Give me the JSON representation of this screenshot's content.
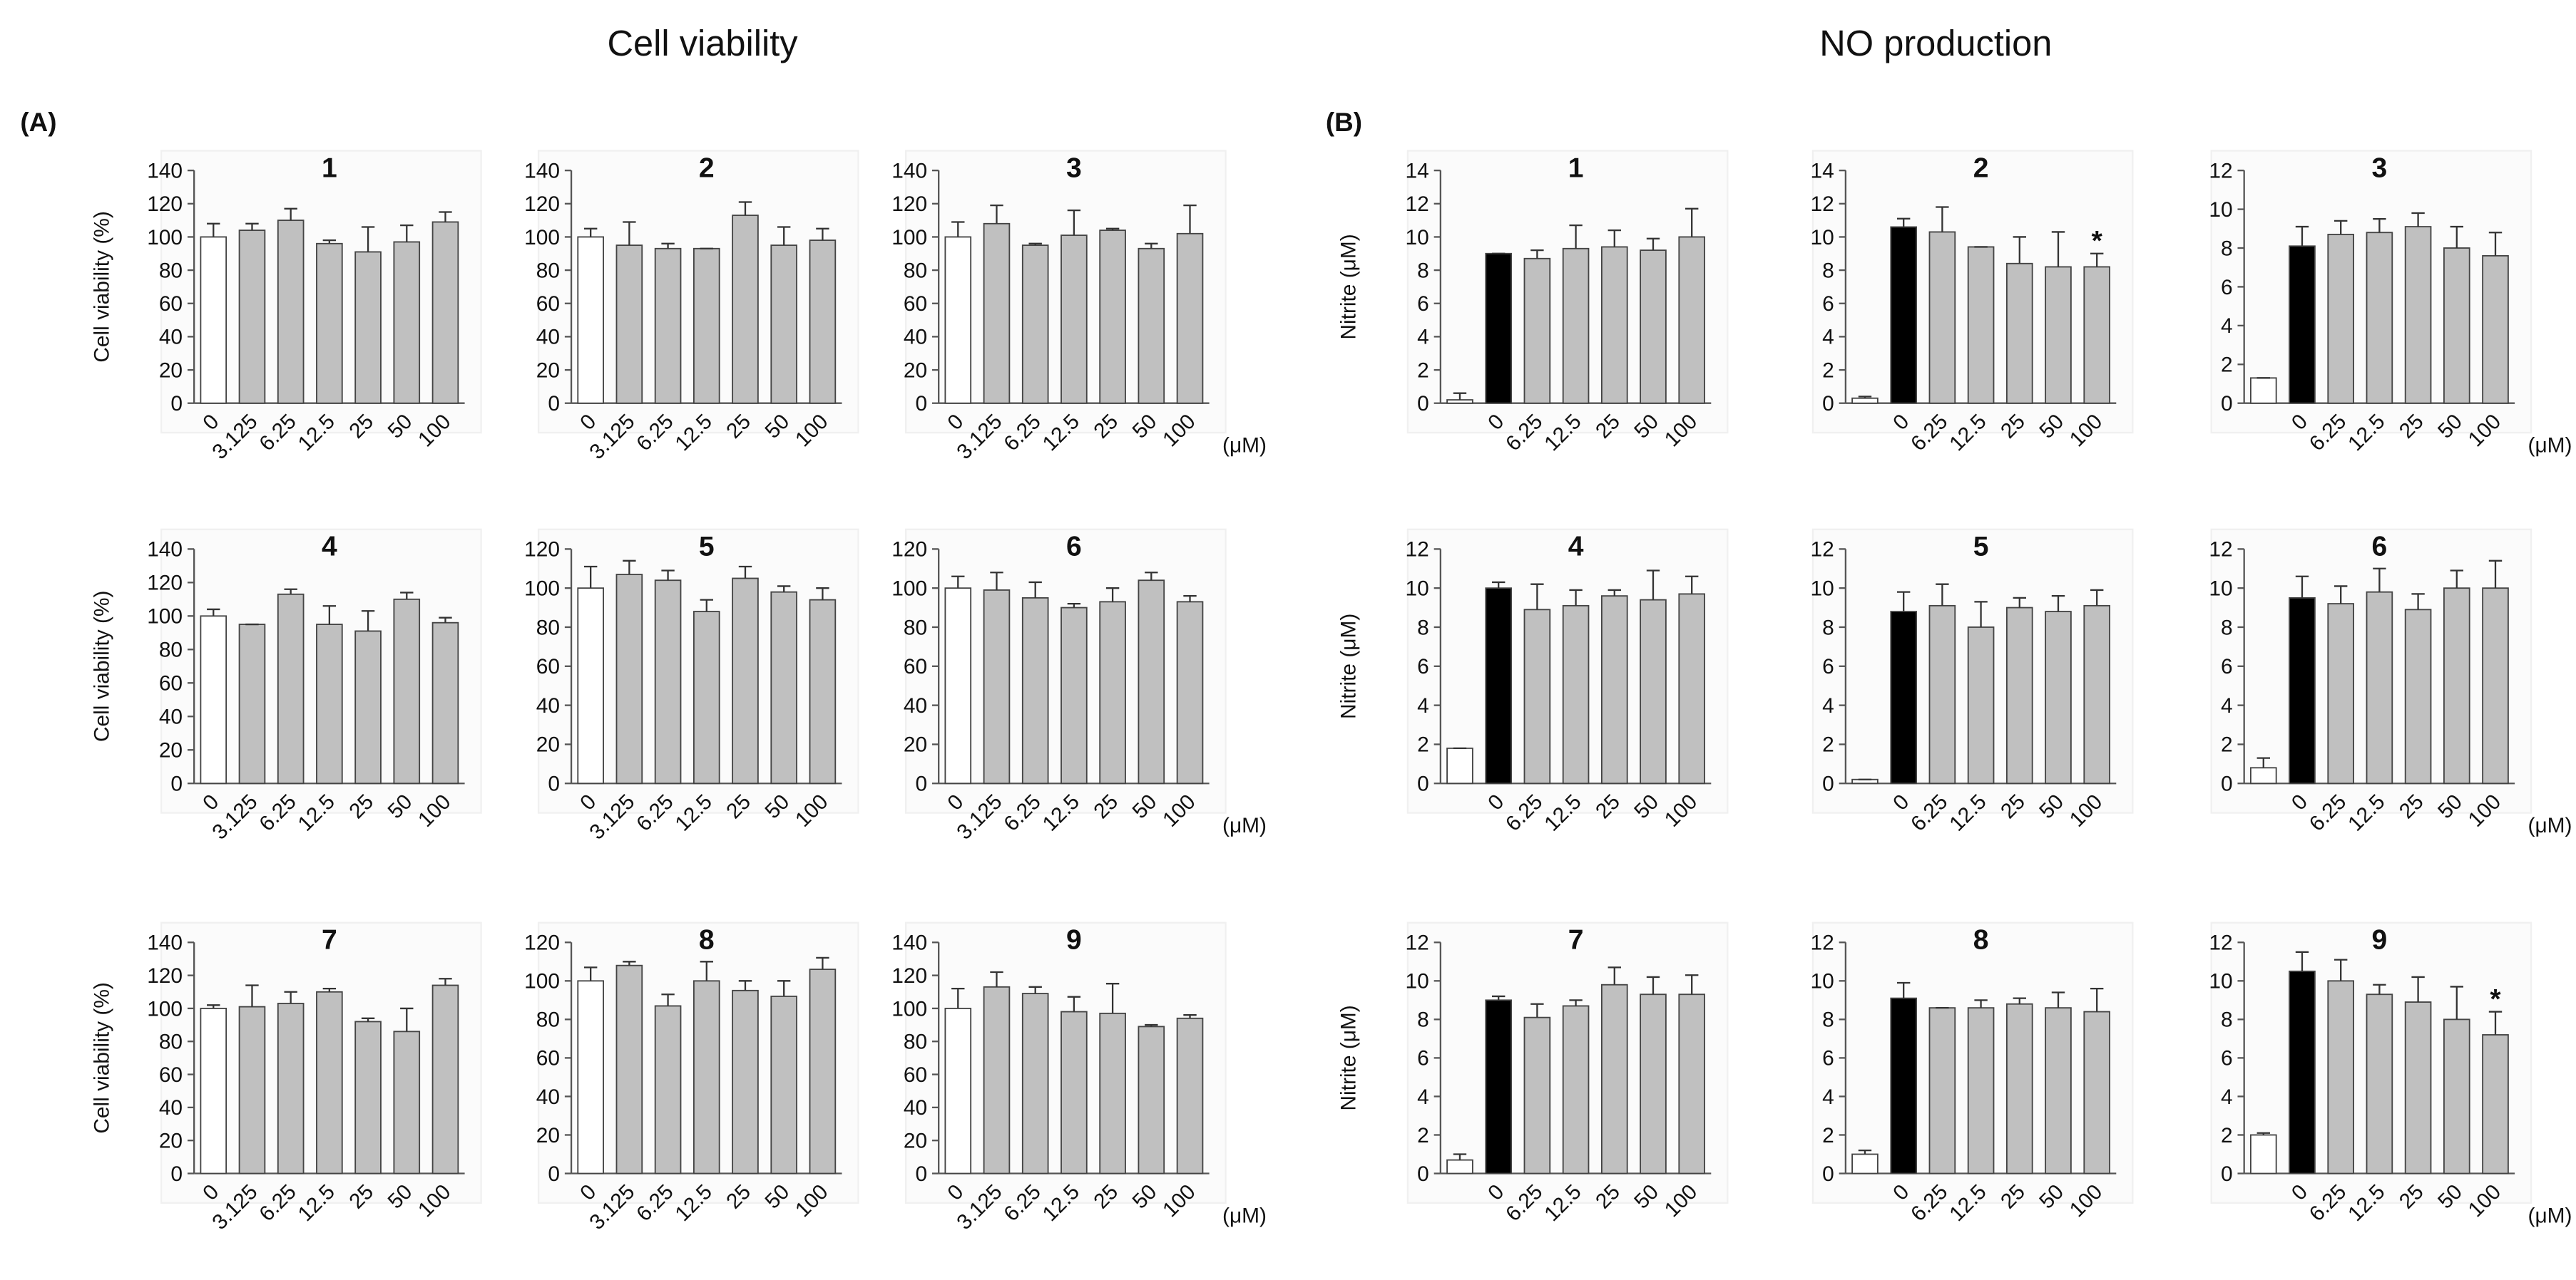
{
  "section_titles": [
    "Cell viability",
    "NO production"
  ],
  "panel_labels": [
    "(A)",
    "(B)"
  ],
  "chart_data": [
    {
      "type": "bar",
      "title": "1",
      "ylabel": "Cell viability (%)",
      "categories": [
        "0",
        "3.125",
        "6.25",
        "12.5",
        "25",
        "50",
        "100"
      ],
      "values": [
        100,
        104,
        110,
        96,
        91,
        97,
        109
      ],
      "errors": [
        8,
        4,
        7,
        2,
        15,
        10,
        6
      ],
      "colors": [
        "#ffffff",
        "#c0c0c0",
        "#c0c0c0",
        "#c0c0c0",
        "#c0c0c0",
        "#c0c0c0",
        "#c0c0c0"
      ],
      "ylim": [
        0,
        140
      ],
      "yticks": [
        0,
        20,
        40,
        60,
        80,
        100,
        120,
        140
      ]
    },
    {
      "type": "bar",
      "title": "2",
      "categories": [
        "0",
        "3.125",
        "6.25",
        "12.5",
        "25",
        "50",
        "100"
      ],
      "values": [
        100,
        95,
        93,
        93,
        113,
        95,
        98
      ],
      "errors": [
        5,
        14,
        3,
        0,
        8,
        11,
        7
      ],
      "colors": [
        "#ffffff",
        "#c0c0c0",
        "#c0c0c0",
        "#c0c0c0",
        "#c0c0c0",
        "#c0c0c0",
        "#c0c0c0"
      ],
      "ylim": [
        0,
        140
      ],
      "yticks": [
        0,
        20,
        40,
        60,
        80,
        100,
        120,
        140
      ]
    },
    {
      "type": "bar",
      "title": "3",
      "x_unit": "(μM)",
      "categories": [
        "0",
        "3.125",
        "6.25",
        "12.5",
        "25",
        "50",
        "100"
      ],
      "values": [
        100,
        108,
        95,
        101,
        104,
        93,
        102
      ],
      "errors": [
        9,
        11,
        1,
        15,
        1,
        3,
        17
      ],
      "colors": [
        "#ffffff",
        "#c0c0c0",
        "#c0c0c0",
        "#c0c0c0",
        "#c0c0c0",
        "#c0c0c0",
        "#c0c0c0"
      ],
      "ylim": [
        0,
        140
      ],
      "yticks": [
        0,
        20,
        40,
        60,
        80,
        100,
        120,
        140
      ]
    },
    {
      "type": "bar",
      "title": "4",
      "ylabel": "Cell viability (%)",
      "categories": [
        "0",
        "3.125",
        "6.25",
        "12.5",
        "25",
        "50",
        "100"
      ],
      "values": [
        100,
        95,
        113,
        95,
        91,
        110,
        96
      ],
      "errors": [
        4,
        0,
        3,
        11,
        12,
        4,
        3
      ],
      "colors": [
        "#ffffff",
        "#c0c0c0",
        "#c0c0c0",
        "#c0c0c0",
        "#c0c0c0",
        "#c0c0c0",
        "#c0c0c0"
      ],
      "ylim": [
        0,
        140
      ],
      "yticks": [
        0,
        20,
        40,
        60,
        80,
        100,
        120,
        140
      ]
    },
    {
      "type": "bar",
      "title": "5",
      "categories": [
        "0",
        "3.125",
        "6.25",
        "12.5",
        "25",
        "50",
        "100"
      ],
      "values": [
        100,
        107,
        104,
        88,
        105,
        98,
        94
      ],
      "errors": [
        11,
        7,
        5,
        6,
        6,
        3,
        6
      ],
      "colors": [
        "#ffffff",
        "#c0c0c0",
        "#c0c0c0",
        "#c0c0c0",
        "#c0c0c0",
        "#c0c0c0",
        "#c0c0c0"
      ],
      "ylim": [
        0,
        120
      ],
      "yticks": [
        0,
        20,
        40,
        60,
        80,
        100,
        120
      ]
    },
    {
      "type": "bar",
      "title": "6",
      "x_unit": "(μM)",
      "categories": [
        "0",
        "3.125",
        "6.25",
        "12.5",
        "25",
        "50",
        "100"
      ],
      "values": [
        100,
        99,
        95,
        90,
        93,
        104,
        93
      ],
      "errors": [
        6,
        9,
        8,
        2,
        7,
        4,
        3
      ],
      "colors": [
        "#ffffff",
        "#c0c0c0",
        "#c0c0c0",
        "#c0c0c0",
        "#c0c0c0",
        "#c0c0c0",
        "#c0c0c0"
      ],
      "ylim": [
        0,
        120
      ],
      "yticks": [
        0,
        20,
        40,
        60,
        80,
        100,
        120
      ]
    },
    {
      "type": "bar",
      "title": "7",
      "ylabel": "Cell viability (%)",
      "categories": [
        "0",
        "3.125",
        "6.25",
        "12.5",
        "25",
        "50",
        "100"
      ],
      "values": [
        100,
        101,
        103,
        110,
        92,
        86,
        114
      ],
      "errors": [
        2,
        13,
        7,
        2,
        2,
        14,
        4
      ],
      "colors": [
        "#ffffff",
        "#c0c0c0",
        "#c0c0c0",
        "#c0c0c0",
        "#c0c0c0",
        "#c0c0c0",
        "#c0c0c0"
      ],
      "ylim": [
        0,
        140
      ],
      "yticks": [
        0,
        20,
        40,
        60,
        80,
        100,
        120,
        140
      ]
    },
    {
      "type": "bar",
      "title": "8",
      "categories": [
        "0",
        "3.125",
        "6.25",
        "12.5",
        "25",
        "50",
        "100"
      ],
      "values": [
        100,
        108,
        87,
        100,
        95,
        92,
        106
      ],
      "errors": [
        7,
        2,
        6,
        10,
        5,
        8,
        6
      ],
      "colors": [
        "#ffffff",
        "#c0c0c0",
        "#c0c0c0",
        "#c0c0c0",
        "#c0c0c0",
        "#c0c0c0",
        "#c0c0c0"
      ],
      "ylim": [
        0,
        120
      ],
      "yticks": [
        0,
        20,
        40,
        60,
        80,
        100,
        120
      ]
    },
    {
      "type": "bar",
      "title": "9",
      "x_unit": "(μM)",
      "categories": [
        "0",
        "3.125",
        "6.25",
        "12.5",
        "25",
        "50",
        "100"
      ],
      "values": [
        100,
        113,
        109,
        98,
        97,
        89,
        94
      ],
      "errors": [
        12,
        9,
        4,
        9,
        18,
        1,
        2
      ],
      "colors": [
        "#ffffff",
        "#c0c0c0",
        "#c0c0c0",
        "#c0c0c0",
        "#c0c0c0",
        "#c0c0c0",
        "#c0c0c0"
      ],
      "ylim": [
        0,
        140
      ],
      "yticks": [
        0,
        20,
        40,
        60,
        80,
        100,
        120,
        140
      ]
    },
    {
      "type": "bar",
      "title": "1",
      "ylabel": "Nitrite (μM)",
      "categories": [
        null,
        "0",
        "6.25",
        "12.5",
        "25",
        "50",
        "100"
      ],
      "values": [
        0.2,
        9.0,
        8.7,
        9.3,
        9.4,
        9.2,
        10.0
      ],
      "errors": [
        0.4,
        0,
        0.5,
        1.4,
        1.0,
        0.7,
        1.7
      ],
      "colors": [
        "#ffffff",
        "#000000",
        "#c0c0c0",
        "#c0c0c0",
        "#c0c0c0",
        "#c0c0c0",
        "#c0c0c0"
      ],
      "ylim": [
        0,
        14
      ],
      "yticks": [
        0,
        2,
        4,
        6,
        8,
        10,
        12,
        14
      ]
    },
    {
      "type": "bar",
      "title": "2",
      "categories": [
        null,
        "0",
        "6.25",
        "12.5",
        "25",
        "50",
        "100"
      ],
      "values": [
        0.3,
        10.6,
        10.3,
        9.4,
        8.4,
        8.2,
        8.2
      ],
      "errors": [
        0.1,
        0.5,
        1.5,
        0,
        1.6,
        2.1,
        0.8
      ],
      "colors": [
        "#ffffff",
        "#000000",
        "#c0c0c0",
        "#c0c0c0",
        "#c0c0c0",
        "#c0c0c0",
        "#c0c0c0"
      ],
      "markers": [
        null,
        null,
        null,
        null,
        null,
        null,
        "*"
      ],
      "ylim": [
        0,
        14
      ],
      "yticks": [
        0,
        2,
        4,
        6,
        8,
        10,
        12,
        14
      ]
    },
    {
      "type": "bar",
      "title": "3",
      "x_unit": "(μM)",
      "categories": [
        null,
        "0",
        "6.25",
        "12.5",
        "25",
        "50",
        "100"
      ],
      "values": [
        1.3,
        8.1,
        8.7,
        8.8,
        9.1,
        8.0,
        7.6
      ],
      "errors": [
        0,
        1.0,
        0.7,
        0.7,
        0.7,
        1.1,
        1.2
      ],
      "colors": [
        "#ffffff",
        "#000000",
        "#c0c0c0",
        "#c0c0c0",
        "#c0c0c0",
        "#c0c0c0",
        "#c0c0c0"
      ],
      "ylim": [
        0,
        12
      ],
      "yticks": [
        0,
        2,
        4,
        6,
        8,
        10,
        12
      ]
    },
    {
      "type": "bar",
      "title": "4",
      "ylabel": "Nitrite (μM)",
      "categories": [
        null,
        "0",
        "6.25",
        "12.5",
        "25",
        "50",
        "100"
      ],
      "values": [
        1.8,
        10.0,
        8.9,
        9.1,
        9.6,
        9.4,
        9.7
      ],
      "errors": [
        0,
        0.3,
        1.3,
        0.8,
        0.3,
        1.5,
        0.9
      ],
      "colors": [
        "#ffffff",
        "#000000",
        "#c0c0c0",
        "#c0c0c0",
        "#c0c0c0",
        "#c0c0c0",
        "#c0c0c0"
      ],
      "ylim": [
        0,
        12
      ],
      "yticks": [
        0,
        2,
        4,
        6,
        8,
        10,
        12
      ]
    },
    {
      "type": "bar",
      "title": "5",
      "categories": [
        null,
        "0",
        "6.25",
        "12.5",
        "25",
        "50",
        "100"
      ],
      "values": [
        0.2,
        8.8,
        9.1,
        8.0,
        9.0,
        8.8,
        9.1
      ],
      "errors": [
        0,
        1.0,
        1.1,
        1.3,
        0.5,
        0.8,
        0.8
      ],
      "colors": [
        "#ffffff",
        "#000000",
        "#c0c0c0",
        "#c0c0c0",
        "#c0c0c0",
        "#c0c0c0",
        "#c0c0c0"
      ],
      "ylim": [
        0,
        12
      ],
      "yticks": [
        0,
        2,
        4,
        6,
        8,
        10,
        12
      ]
    },
    {
      "type": "bar",
      "title": "6",
      "x_unit": "(μM)",
      "categories": [
        null,
        "0",
        "6.25",
        "12.5",
        "25",
        "50",
        "100"
      ],
      "values": [
        0.8,
        9.5,
        9.2,
        9.8,
        8.9,
        10.0,
        10.0
      ],
      "errors": [
        0.5,
        1.1,
        0.9,
        1.2,
        0.8,
        0.9,
        1.4
      ],
      "colors": [
        "#ffffff",
        "#000000",
        "#c0c0c0",
        "#c0c0c0",
        "#c0c0c0",
        "#c0c0c0",
        "#c0c0c0"
      ],
      "ylim": [
        0,
        12
      ],
      "yticks": [
        0,
        2,
        4,
        6,
        8,
        10,
        12
      ]
    },
    {
      "type": "bar",
      "title": "7",
      "ylabel": "Nitrite (μM)",
      "categories": [
        null,
        "0",
        "6.25",
        "12.5",
        "25",
        "50",
        "100"
      ],
      "values": [
        0.7,
        9.0,
        8.1,
        8.7,
        9.8,
        9.3,
        9.3
      ],
      "errors": [
        0.3,
        0.2,
        0.7,
        0.3,
        0.9,
        0.9,
        1.0
      ],
      "colors": [
        "#ffffff",
        "#000000",
        "#c0c0c0",
        "#c0c0c0",
        "#c0c0c0",
        "#c0c0c0",
        "#c0c0c0"
      ],
      "ylim": [
        0,
        12
      ],
      "yticks": [
        0,
        2,
        4,
        6,
        8,
        10,
        12
      ]
    },
    {
      "type": "bar",
      "title": "8",
      "categories": [
        null,
        "0",
        "6.25",
        "12.5",
        "25",
        "50",
        "100"
      ],
      "values": [
        1.0,
        9.1,
        8.6,
        8.6,
        8.8,
        8.6,
        8.4
      ],
      "errors": [
        0.2,
        0.8,
        0,
        0.4,
        0.3,
        0.8,
        1.2
      ],
      "colors": [
        "#ffffff",
        "#000000",
        "#c0c0c0",
        "#c0c0c0",
        "#c0c0c0",
        "#c0c0c0",
        "#c0c0c0"
      ],
      "ylim": [
        0,
        12
      ],
      "yticks": [
        0,
        2,
        4,
        6,
        8,
        10,
        12
      ]
    },
    {
      "type": "bar",
      "title": "9",
      "x_unit": "(μM)",
      "categories": [
        null,
        "0",
        "6.25",
        "12.5",
        "25",
        "50",
        "100"
      ],
      "values": [
        2.0,
        10.5,
        10.0,
        9.3,
        8.9,
        8.0,
        7.2
      ],
      "errors": [
        0.1,
        1.0,
        1.1,
        0.5,
        1.3,
        1.7,
        1.2
      ],
      "colors": [
        "#ffffff",
        "#000000",
        "#c0c0c0",
        "#c0c0c0",
        "#c0c0c0",
        "#c0c0c0",
        "#c0c0c0"
      ],
      "markers": [
        null,
        null,
        null,
        null,
        null,
        null,
        "*"
      ],
      "ylim": [
        0,
        12
      ],
      "yticks": [
        0,
        2,
        4,
        6,
        8,
        10,
        12
      ]
    }
  ]
}
